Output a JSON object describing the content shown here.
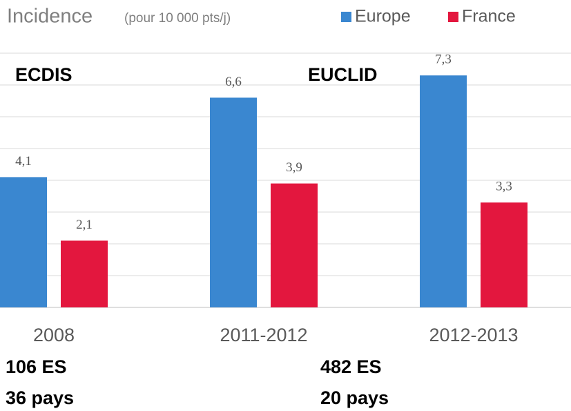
{
  "chart_data": {
    "type": "bar",
    "title": "Incidence",
    "subtitle": "(pour 10 000 pts/j)",
    "categories": [
      "2008",
      "2011-2012",
      "2012-2013"
    ],
    "series": [
      {
        "name": "Europe",
        "color": "#3a87d0",
        "values": [
          4.1,
          6.6,
          7.3
        ],
        "value_labels": [
          "4,1",
          "6,6",
          "7,3"
        ]
      },
      {
        "name": "France",
        "color": "#e3173e",
        "values": [
          2.1,
          3.9,
          3.3
        ],
        "value_labels": [
          "2,1",
          "3,9",
          "3,3"
        ]
      }
    ],
    "ylim": [
      0,
      8
    ],
    "yticks": [
      0,
      1,
      2,
      3,
      4,
      5,
      6,
      7,
      8
    ],
    "grid": true,
    "legend": "top",
    "annotations": [
      "ECDIS",
      "EUCLID",
      "106 ES",
      "36 pays",
      "482 ES",
      "20 pays"
    ]
  }
}
